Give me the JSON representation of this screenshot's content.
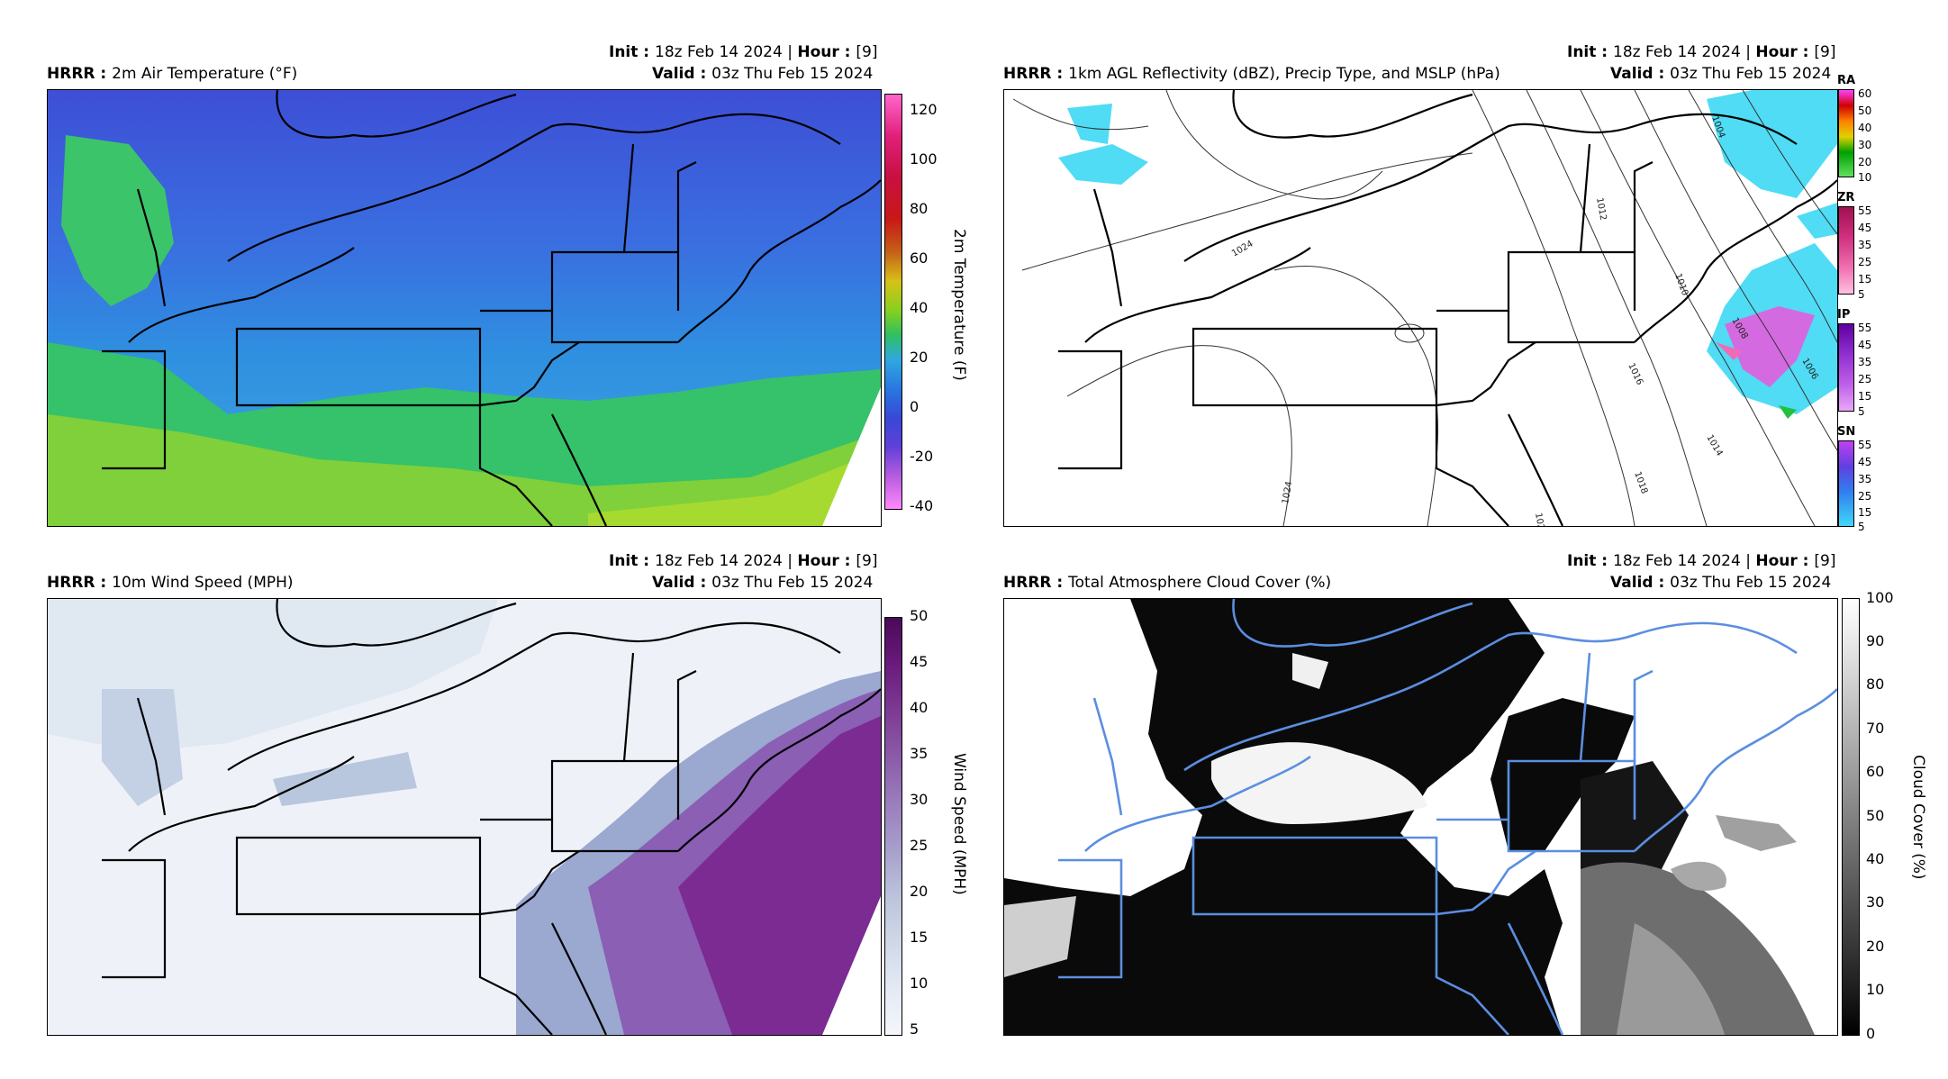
{
  "panels": [
    {
      "model": "HRRR",
      "field": "2m Air Temperature (°F)",
      "init_label": "Init",
      "init_value": "18z Feb 14 2024",
      "hour_label": "Hour",
      "hour_value": "[9]",
      "valid_label": "Valid",
      "valid_value": "03z Thu Feb 15 2024",
      "colorbar_title": "2m Temperature (F)",
      "colorbar_ticks": [
        "120",
        "100",
        "80",
        "60",
        "40",
        "20",
        "0",
        "-20",
        "-40"
      ]
    },
    {
      "model": "HRRR",
      "field": "1km AGL Reflectivity (dBZ), Precip Type, and MSLP (hPa)",
      "init_label": "Init",
      "init_value": "18z Feb 14 2024",
      "hour_label": "Hour",
      "hour_value": "[9]",
      "valid_label": "Valid",
      "valid_value": "03z Thu Feb 15 2024",
      "precip_types": [
        {
          "label": "RA",
          "ticks": [
            "60",
            "50",
            "40",
            "30",
            "20",
            "10"
          ]
        },
        {
          "label": "ZR",
          "ticks": [
            "55",
            "45",
            "35",
            "25",
            "15",
            "5"
          ]
        },
        {
          "label": "IP",
          "ticks": [
            "55",
            "45",
            "35",
            "25",
            "15",
            "5"
          ]
        },
        {
          "label": "SN",
          "ticks": [
            "55",
            "45",
            "35",
            "25",
            "15",
            "5"
          ]
        }
      ],
      "isobar_labels": [
        "1024",
        "1012",
        "1010",
        "1008",
        "1006",
        "1016",
        "1014",
        "1018",
        "1024",
        "1022",
        "1004",
        "1024"
      ]
    },
    {
      "model": "HRRR",
      "field": "10m Wind Speed (MPH)",
      "init_label": "Init",
      "init_value": "18z Feb 14 2024",
      "hour_label": "Hour",
      "hour_value": "[9]",
      "valid_label": "Valid",
      "valid_value": "03z Thu Feb 15 2024",
      "colorbar_title": "Wind Speed (MPH)",
      "colorbar_ticks": [
        "50",
        "45",
        "40",
        "35",
        "30",
        "25",
        "20",
        "15",
        "10",
        "5"
      ]
    },
    {
      "model": "HRRR",
      "field": "Total Atmosphere Cloud Cover (%)",
      "init_label": "Init",
      "init_value": "18z Feb 14 2024",
      "hour_label": "Hour",
      "hour_value": "[9]",
      "valid_label": "Valid",
      "valid_value": "03z Thu Feb 15 2024",
      "colorbar_title": "Cloud Cover (%)",
      "colorbar_ticks": [
        "100",
        "90",
        "80",
        "70",
        "60",
        "50",
        "40",
        "30",
        "20",
        "10",
        "0"
      ]
    }
  ],
  "colors": {
    "temp_bg": "#2e6fd8",
    "wind_high": "#7a2a8c",
    "cloud_dark": "#0a0a0a",
    "cloud_border": "#5b8ee0"
  }
}
